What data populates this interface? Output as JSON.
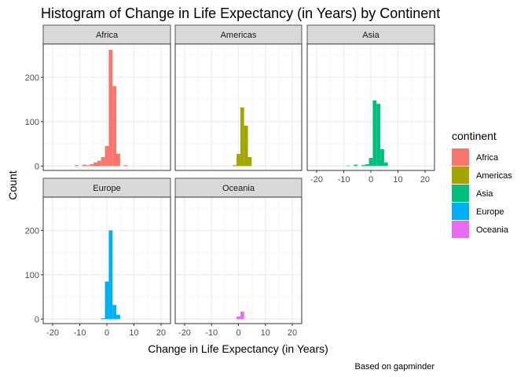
{
  "chart_data": {
    "type": "bar",
    "title": "Histogram of Change in Life Expectancy (in Years) by Continent",
    "xlabel": "Change in Life Expectancy (in Years)",
    "ylabel": "Count",
    "caption": "Based on gapminder",
    "xlim": [
      -23.5,
      23.5
    ],
    "ylim": [
      -10,
      275
    ],
    "x_ticks": [
      -20,
      -10,
      0,
      10,
      20
    ],
    "y_ticks": [
      0,
      100,
      200
    ],
    "bin_width": 1.4,
    "grid": true,
    "legend": {
      "title": "continent",
      "position": "right",
      "entries": [
        "Africa",
        "Americas",
        "Asia",
        "Europe",
        "Oceania"
      ]
    },
    "series": [
      {
        "name": "Africa",
        "color": "#F8766D",
        "bins": [
          {
            "x": -11.2,
            "count": 2
          },
          {
            "x": -8.4,
            "count": 3
          },
          {
            "x": -7.0,
            "count": 2
          },
          {
            "x": -5.6,
            "count": 4
          },
          {
            "x": -4.2,
            "count": 8
          },
          {
            "x": -2.8,
            "count": 12
          },
          {
            "x": -1.4,
            "count": 20
          },
          {
            "x": 0.0,
            "count": 45
          },
          {
            "x": 1.4,
            "count": 262
          },
          {
            "x": 2.8,
            "count": 180
          },
          {
            "x": 4.2,
            "count": 28
          },
          {
            "x": 7.0,
            "count": 2
          }
        ]
      },
      {
        "name": "Americas",
        "color": "#A3A500",
        "bins": [
          {
            "x": -1.4,
            "count": 2
          },
          {
            "x": 0.0,
            "count": 27
          },
          {
            "x": 1.4,
            "count": 132
          },
          {
            "x": 2.8,
            "count": 91
          },
          {
            "x": 4.2,
            "count": 20
          }
        ]
      },
      {
        "name": "Asia",
        "color": "#00BF7D",
        "bins": [
          {
            "x": -8.4,
            "count": 1
          },
          {
            "x": -5.6,
            "count": 3
          },
          {
            "x": -2.8,
            "count": 2
          },
          {
            "x": -1.4,
            "count": 4
          },
          {
            "x": 0.0,
            "count": 18
          },
          {
            "x": 1.4,
            "count": 148
          },
          {
            "x": 2.8,
            "count": 140
          },
          {
            "x": 4.2,
            "count": 38
          },
          {
            "x": 5.6,
            "count": 8
          }
        ]
      },
      {
        "name": "Europe",
        "color": "#00B0F6",
        "bins": [
          {
            "x": -1.4,
            "count": 2
          },
          {
            "x": 0.0,
            "count": 85
          },
          {
            "x": 1.4,
            "count": 200
          },
          {
            "x": 2.8,
            "count": 32
          },
          {
            "x": 4.2,
            "count": 10
          }
        ]
      },
      {
        "name": "Oceania",
        "color": "#E76BF3",
        "bins": [
          {
            "x": 0.0,
            "count": 6
          },
          {
            "x": 1.4,
            "count": 17
          }
        ]
      }
    ]
  }
}
